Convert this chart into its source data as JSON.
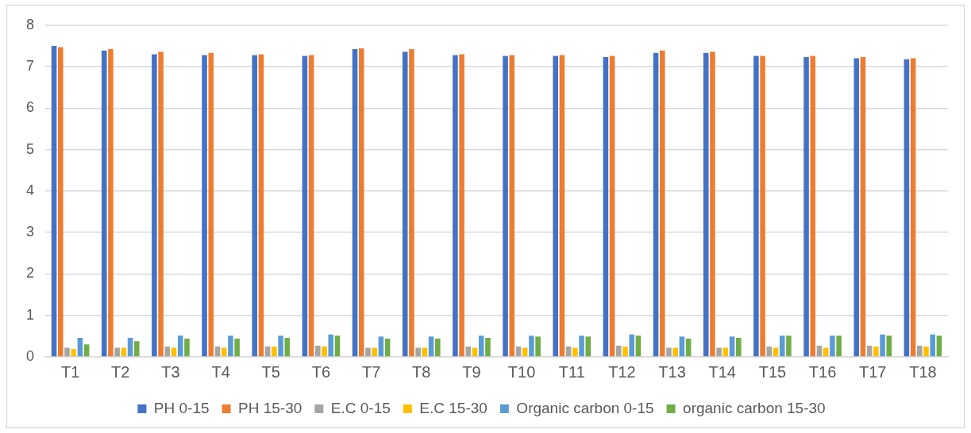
{
  "chart_data": {
    "type": "bar",
    "categories": [
      "T1",
      "T2",
      "T3",
      "T4",
      "T5",
      "T6",
      "T7",
      "T8",
      "T9",
      "T10",
      "T11",
      "T12",
      "T13",
      "T14",
      "T15",
      "T16",
      "T17",
      "T18"
    ],
    "series": [
      {
        "name": "PH 0-15",
        "color": "#4472c4",
        "values": [
          7.5,
          7.39,
          7.3,
          7.28,
          7.28,
          7.26,
          7.42,
          7.36,
          7.28,
          7.26,
          7.26,
          7.23,
          7.33,
          7.33,
          7.26,
          7.23,
          7.2,
          7.18
        ]
      },
      {
        "name": "PH 15-30",
        "color": "#ed7d31",
        "values": [
          7.47,
          7.42,
          7.36,
          7.33,
          7.3,
          7.28,
          7.44,
          7.42,
          7.3,
          7.28,
          7.28,
          7.26,
          7.39,
          7.36,
          7.26,
          7.26,
          7.23,
          7.2
        ]
      },
      {
        "name": "E.C 0-15",
        "color": "#a5a5a5",
        "values": [
          0.22,
          0.22,
          0.25,
          0.25,
          0.25,
          0.27,
          0.22,
          0.22,
          0.25,
          0.25,
          0.25,
          0.27,
          0.22,
          0.22,
          0.25,
          0.27,
          0.27,
          0.27
        ]
      },
      {
        "name": "E.C 15-30",
        "color": "#ffc000",
        "values": [
          0.19,
          0.22,
          0.22,
          0.22,
          0.25,
          0.25,
          0.22,
          0.22,
          0.22,
          0.22,
          0.22,
          0.25,
          0.22,
          0.22,
          0.22,
          0.22,
          0.25,
          0.25
        ]
      },
      {
        "name": "Organic carbon 0-15",
        "color": "#5b9bd5",
        "values": [
          0.46,
          0.46,
          0.51,
          0.51,
          0.51,
          0.54,
          0.49,
          0.49,
          0.51,
          0.51,
          0.51,
          0.54,
          0.49,
          0.49,
          0.51,
          0.51,
          0.54,
          0.54
        ]
      },
      {
        "name": "organic carbon 15-30",
        "color": "#70ad47",
        "values": [
          0.3,
          0.38,
          0.44,
          0.44,
          0.46,
          0.51,
          0.44,
          0.44,
          0.46,
          0.49,
          0.49,
          0.51,
          0.44,
          0.46,
          0.51,
          0.51,
          0.51,
          0.51
        ]
      }
    ],
    "ylim": [
      0,
      8
    ],
    "yticks": [
      0,
      1,
      2,
      3,
      4,
      5,
      6,
      7,
      8
    ],
    "grid": "y",
    "legend": "bottom"
  }
}
